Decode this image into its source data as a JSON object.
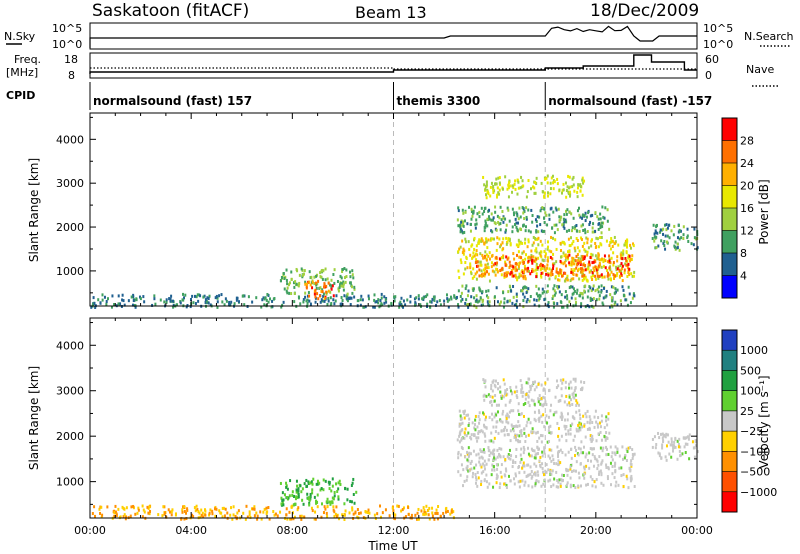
{
  "header": {
    "station": "Saskatoon (fitACF)",
    "beam": "Beam 13",
    "date": "18/Dec/2009"
  },
  "nsky_panel": {
    "left_label": "N.Sky",
    "right_label": "N.Search",
    "left_ticks": [
      "10^5",
      "10^0"
    ],
    "right_ticks": [
      "10^5",
      "10^0"
    ]
  },
  "freq_panel": {
    "left_label_1": "Freq.",
    "left_label_2": "[MHz]",
    "right_label": "Nave",
    "left_ticks": [
      "18",
      "8"
    ],
    "right_ticks": [
      "60",
      "0"
    ]
  },
  "cpid": {
    "label": "CPID",
    "segments": [
      {
        "name": "normalsound (fast) 157",
        "start_hour": 0
      },
      {
        "name": "themis 3300",
        "start_hour": 12
      },
      {
        "name": "normalsound (fast) -157",
        "start_hour": 18
      }
    ]
  },
  "power_colorbar": {
    "label": "Power [dB]",
    "ticks": [
      "28",
      "24",
      "20",
      "16",
      "12",
      "8",
      "4"
    ],
    "colors": [
      "#ff0000",
      "#ff7000",
      "#ffb000",
      "#e8e800",
      "#a0d040",
      "#40a060",
      "#206090",
      "#0000ff"
    ]
  },
  "velocity_colorbar": {
    "label": "Velocity [m s⁻¹]",
    "ticks": [
      "1000",
      "500",
      "100",
      "25",
      "−25",
      "−100",
      "−500",
      "−1000"
    ],
    "colors": [
      "#2040c0",
      "#208080",
      "#20a040",
      "#60d030",
      "#c8c8c8",
      "#ffd000",
      "#ff9000",
      "#ff5000",
      "#ff0000"
    ]
  },
  "chart_data": [
    {
      "type": "heatmap",
      "panel": "power",
      "ylabel": "Slant Range [km]",
      "ylim": [
        200,
        4600
      ],
      "yticks": [
        "1000",
        "2000",
        "3000",
        "4000"
      ],
      "xlim": [
        0,
        24
      ],
      "regions": [
        {
          "t": [
            0,
            14.5
          ],
          "r": [
            200,
            500
          ],
          "level": 8
        },
        {
          "t": [
            7.5,
            10.5
          ],
          "r": [
            500,
            1100
          ],
          "level": 12
        },
        {
          "t": [
            8.4,
            9.6
          ],
          "r": [
            400,
            800
          ],
          "level": 26
        },
        {
          "t": [
            14.5,
            21.5
          ],
          "r": [
            200,
            700
          ],
          "level": 10
        },
        {
          "t": [
            14.5,
            21.5
          ],
          "r": [
            800,
            1800
          ],
          "level": 18
        },
        {
          "t": [
            15.2,
            21.3
          ],
          "r": [
            900,
            1400
          ],
          "level": 26
        },
        {
          "t": [
            14.5,
            20.5
          ],
          "r": [
            1900,
            2500
          ],
          "level": 10
        },
        {
          "t": [
            15.5,
            19.5
          ],
          "r": [
            2700,
            3200
          ],
          "level": 16
        },
        {
          "t": [
            22.2,
            24
          ],
          "r": [
            1500,
            2100
          ],
          "level": 10
        }
      ]
    },
    {
      "type": "heatmap",
      "panel": "velocity",
      "ylabel": "Slant Range [km]",
      "ylim": [
        200,
        4600
      ],
      "yticks": [
        "1000",
        "2000",
        "3000",
        "4000"
      ],
      "xlabel": "Time UT",
      "xlim": [
        0,
        24
      ],
      "xticks": [
        "00:00",
        "04:00",
        "08:00",
        "12:00",
        "16:00",
        "20:00",
        "00:00"
      ],
      "regions": [
        {
          "t": [
            0,
            14.5
          ],
          "r": [
            200,
            500
          ],
          "v": -100
        },
        {
          "t": [
            7.5,
            10.5
          ],
          "r": [
            500,
            1100
          ],
          "v": 100
        },
        {
          "t": [
            14.5,
            21.5
          ],
          "r": [
            900,
            1800
          ],
          "v": 0
        },
        {
          "t": [
            14.5,
            20.5
          ],
          "r": [
            1900,
            2600
          ],
          "v": 0
        },
        {
          "t": [
            15.5,
            19.5
          ],
          "r": [
            2700,
            3300
          ],
          "v": 0
        },
        {
          "t": [
            22.2,
            24
          ],
          "r": [
            1500,
            2100
          ],
          "v": 0
        }
      ]
    }
  ]
}
